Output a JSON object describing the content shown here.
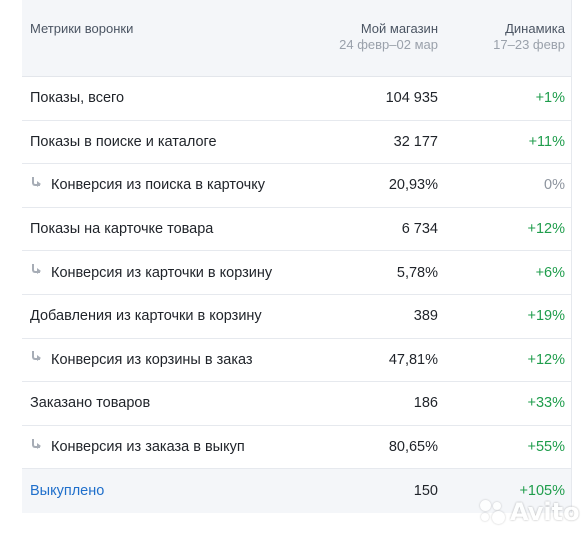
{
  "header": {
    "metric_label": "Метрики воронки",
    "shop_title": "Мой магазин",
    "shop_period": "24 февр–02 мар",
    "dyn_title": "Динамика",
    "dyn_period": "17–23 февр"
  },
  "rows": [
    {
      "label": "Показы, всего",
      "value": "104 935",
      "dynamic": "+1%"
    },
    {
      "label": "Показы в поиске и каталоге",
      "value": "32 177",
      "dynamic": "+11%"
    },
    {
      "label": "Конверсия из поиска в карточку",
      "value": "20,93%",
      "dynamic": "0%"
    },
    {
      "label": "Показы на карточке товара",
      "value": "6 734",
      "dynamic": "+12%"
    },
    {
      "label": "Конверсия из карточки в корзину",
      "value": "5,78%",
      "dynamic": "+6%"
    },
    {
      "label": "Добавления из карточки в корзину",
      "value": "389",
      "dynamic": "+19%"
    },
    {
      "label": "Конверсия из корзины в заказ",
      "value": "47,81%",
      "dynamic": "+12%"
    },
    {
      "label": "Заказано товаров",
      "value": "186",
      "dynamic": "+33%"
    },
    {
      "label": "Конверсия из заказа в выкуп",
      "value": "80,65%",
      "dynamic": "+55%"
    },
    {
      "label": "Выкуплено",
      "value": "150",
      "dynamic": "+105%"
    }
  ],
  "watermark": {
    "text": "Avito",
    "icon": "avito-logo-icon"
  },
  "colors": {
    "positive": "#1f9d4c",
    "neutral": "#8d949e",
    "link": "#1f6fcb",
    "header_bg": "#f4f6f9"
  }
}
